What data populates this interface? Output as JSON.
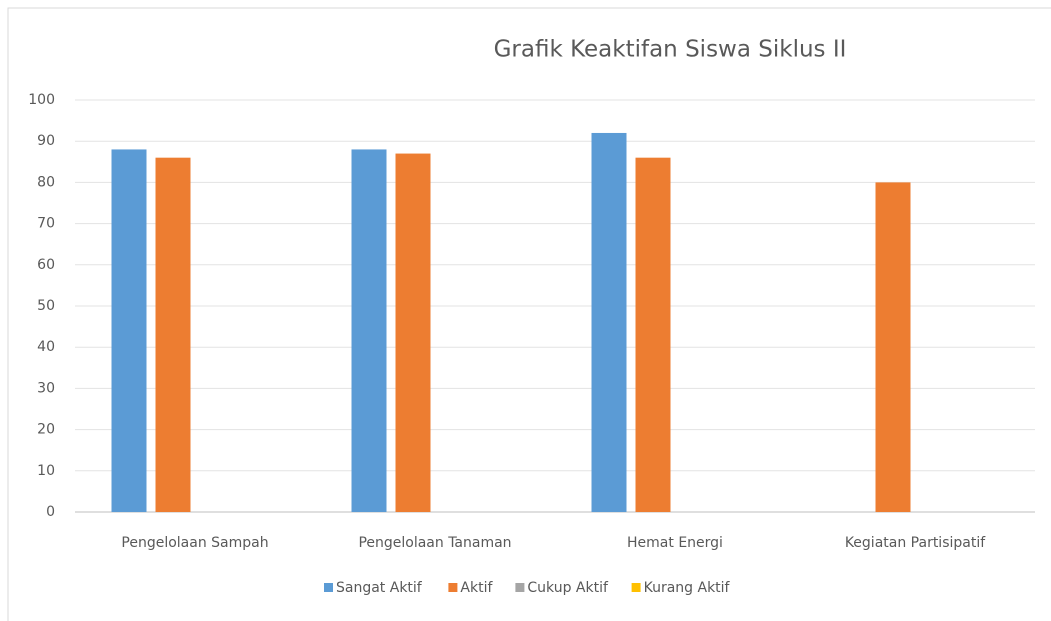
{
  "chart_data": {
    "type": "bar",
    "title": "Grafik Keaktifan Siswa Siklus II",
    "categories": [
      "Pengelolaan Sampah",
      "Pengelolaan Tanaman",
      "Hemat Energi",
      "Kegiatan Partisipatif"
    ],
    "series": [
      {
        "name": "Sangat Aktif",
        "color": "#5b9bd5",
        "values": [
          88,
          88,
          92,
          0
        ]
      },
      {
        "name": "Aktif",
        "color": "#ed7d31",
        "values": [
          86,
          87,
          86,
          80
        ]
      },
      {
        "name": "Cukup Aktif",
        "color": "#a5a5a5",
        "values": [
          0,
          0,
          0,
          0
        ]
      },
      {
        "name": "Kurang Aktif",
        "color": "#ffc000",
        "values": [
          0,
          0,
          0,
          0
        ]
      }
    ],
    "ylim": [
      0,
      100
    ],
    "yticks": [
      0,
      10,
      20,
      30,
      40,
      50,
      60,
      70,
      80,
      90,
      100
    ],
    "grid": true,
    "legend": "bottom"
  }
}
